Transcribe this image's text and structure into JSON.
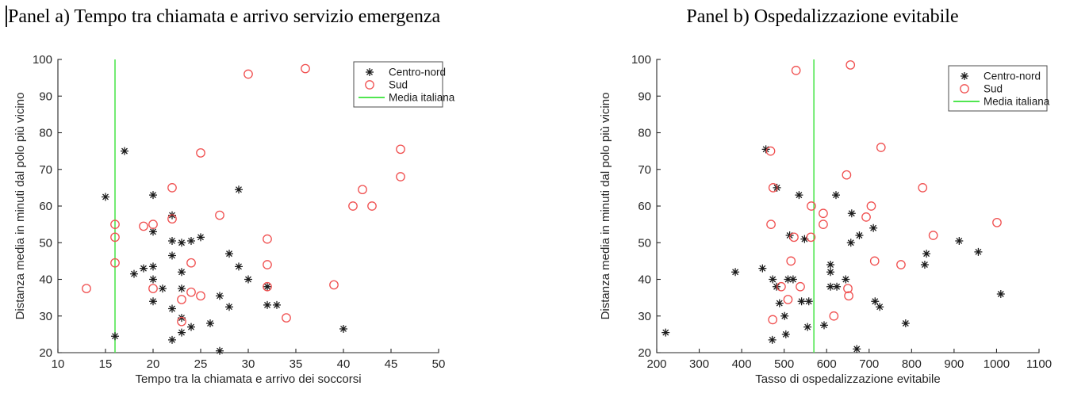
{
  "figure": {
    "background": "#ffffff",
    "marker_legend": [
      "Centro-nord",
      "Sud",
      "Media italiana"
    ]
  },
  "style": {
    "axis_color": "#262626",
    "tick_label_color": "#262626",
    "centro_nord_color": "#1a1a1a",
    "sud_color": "#f04f4f",
    "media_italiana_color": "#50e650",
    "legend_border_color": "#4d4d4d"
  },
  "chart_data": [
    {
      "type": "scatter",
      "title": "Panel a) Tempo tra chiamata e arrivo servizio emergenza",
      "xlabel": "Tempo tra la chiamata e arrivo dei soccorsi",
      "ylabel": "Distanza media in minuti dal polo più vicino",
      "xlim": [
        10,
        50
      ],
      "ylim": [
        20,
        100
      ],
      "xticks": [
        10,
        15,
        20,
        25,
        30,
        35,
        40,
        45,
        50
      ],
      "yticks": [
        20,
        30,
        40,
        50,
        60,
        70,
        80,
        90,
        100
      ],
      "grid": false,
      "legend_position": "top-right",
      "vline": {
        "label": "Media italiana",
        "x": 16,
        "color": "#50e650"
      },
      "series": [
        {
          "name": "Centro-nord",
          "marker": "asterisk",
          "color": "#1a1a1a",
          "points": [
            [
              15,
              62.5
            ],
            [
              16,
              24.5
            ],
            [
              17,
              75
            ],
            [
              18,
              41.5
            ],
            [
              19,
              43
            ],
            [
              20,
              63
            ],
            [
              20,
              53
            ],
            [
              20,
              43.5
            ],
            [
              20,
              40
            ],
            [
              20,
              34
            ],
            [
              21,
              37.5
            ],
            [
              22,
              57.5
            ],
            [
              22,
              50.5
            ],
            [
              22,
              46.5
            ],
            [
              22,
              32
            ],
            [
              22,
              23.5
            ],
            [
              23,
              50
            ],
            [
              23,
              42
            ],
            [
              23,
              37.5
            ],
            [
              23,
              29.5
            ],
            [
              23,
              25.5
            ],
            [
              24,
              50.5
            ],
            [
              24,
              27
            ],
            [
              25,
              51.5
            ],
            [
              26,
              28
            ],
            [
              27,
              35.5
            ],
            [
              27,
              20.5
            ],
            [
              28,
              47
            ],
            [
              28,
              32.5
            ],
            [
              29,
              64.5
            ],
            [
              29,
              43.5
            ],
            [
              30,
              40
            ],
            [
              32,
              38
            ],
            [
              32,
              33
            ],
            [
              33,
              33
            ],
            [
              40,
              26.5
            ]
          ]
        },
        {
          "name": "Sud",
          "marker": "circle",
          "color": "#f04f4f",
          "points": [
            [
              13,
              37.5
            ],
            [
              16,
              55
            ],
            [
              16,
              51.5
            ],
            [
              16,
              44.5
            ],
            [
              19,
              54.5
            ],
            [
              20,
              55
            ],
            [
              20,
              37.5
            ],
            [
              22,
              65
            ],
            [
              22,
              56.5
            ],
            [
              23,
              34.5
            ],
            [
              23,
              28.5
            ],
            [
              24,
              44.5
            ],
            [
              24,
              36.5
            ],
            [
              25,
              74.5
            ],
            [
              25,
              35.5
            ],
            [
              27,
              57.5
            ],
            [
              30,
              96
            ],
            [
              32,
              51
            ],
            [
              32,
              44
            ],
            [
              32,
              38
            ],
            [
              34,
              29.5
            ],
            [
              36,
              97.5
            ],
            [
              39,
              38.5
            ],
            [
              41,
              60
            ],
            [
              42,
              64.5
            ],
            [
              43,
              60
            ],
            [
              46,
              75.5
            ],
            [
              46,
              68
            ]
          ]
        }
      ]
    },
    {
      "type": "scatter",
      "title": "Panel b) Ospedalizzazione evitabile",
      "xlabel": "Tasso di ospedalizzazione evitabile",
      "ylabel": "Distanza media in minuti dal polo più vicino",
      "xlim": [
        200,
        1100
      ],
      "ylim": [
        20,
        100
      ],
      "xticks": [
        200,
        300,
        400,
        500,
        600,
        700,
        800,
        900,
        1000,
        1100
      ],
      "yticks": [
        20,
        30,
        40,
        50,
        60,
        70,
        80,
        90,
        100
      ],
      "grid": false,
      "legend_position": "top-right",
      "vline": {
        "label": "Media italiana",
        "x": 570,
        "color": "#50e650"
      },
      "series": [
        {
          "name": "Centro-nord",
          "marker": "asterisk",
          "color": "#1a1a1a",
          "points": [
            [
              221,
              25.5
            ],
            [
              385,
              42
            ],
            [
              449,
              43
            ],
            [
              457,
              75.5
            ],
            [
              472,
              23.5
            ],
            [
              473,
              40
            ],
            [
              482,
              38
            ],
            [
              483,
              65
            ],
            [
              489,
              33.5
            ],
            [
              501,
              30
            ],
            [
              504,
              25
            ],
            [
              509,
              40
            ],
            [
              513,
              52
            ],
            [
              521,
              40
            ],
            [
              535,
              63
            ],
            [
              541,
              34
            ],
            [
              548,
              51
            ],
            [
              555,
              27
            ],
            [
              558,
              34
            ],
            [
              594,
              27.5
            ],
            [
              609,
              44
            ],
            [
              609,
              42
            ],
            [
              609,
              38
            ],
            [
              622,
              63
            ],
            [
              624,
              38
            ],
            [
              645,
              40
            ],
            [
              657,
              50
            ],
            [
              659,
              58
            ],
            [
              671,
              21
            ],
            [
              677,
              52
            ],
            [
              710,
              54
            ],
            [
              714,
              34
            ],
            [
              725,
              32.5
            ],
            [
              786,
              28
            ],
            [
              831,
              44
            ],
            [
              835,
              47
            ],
            [
              912,
              50.5
            ],
            [
              957,
              47.5
            ],
            [
              1010,
              36
            ]
          ]
        },
        {
          "name": "Sud",
          "marker": "circle",
          "color": "#f04f4f",
          "points": [
            [
              468,
              75
            ],
            [
              469,
              55
            ],
            [
              473,
              29
            ],
            [
              474,
              65
            ],
            [
              493,
              38
            ],
            [
              509,
              34.5
            ],
            [
              516,
              45
            ],
            [
              523,
              51.5
            ],
            [
              528,
              97
            ],
            [
              538,
              38
            ],
            [
              563,
              51.5
            ],
            [
              564,
              60
            ],
            [
              592,
              58
            ],
            [
              592,
              55
            ],
            [
              617,
              30
            ],
            [
              647,
              68.5
            ],
            [
              650,
              37.5
            ],
            [
              652,
              35.5
            ],
            [
              656,
              98.5
            ],
            [
              693,
              57
            ],
            [
              705,
              60
            ],
            [
              713,
              45
            ],
            [
              728,
              76
            ],
            [
              775,
              44
            ],
            [
              826,
              65
            ],
            [
              851,
              52
            ],
            [
              1001,
              55.5
            ]
          ]
        }
      ]
    }
  ]
}
